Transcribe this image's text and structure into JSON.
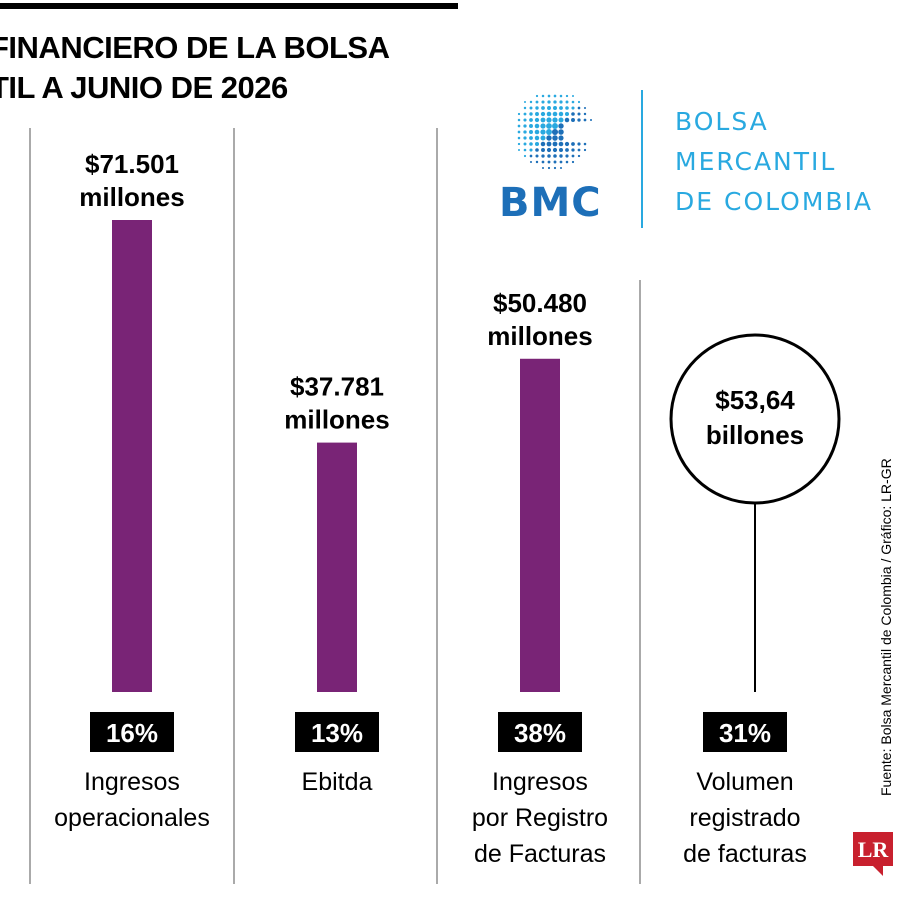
{
  "header": {
    "title_line1": "FINANCIERO DE LA BOLSA",
    "title_line2": "TIL A JUNIO DE 2026"
  },
  "logo": {
    "lettermark": "BMC",
    "name_line1": "BOLSA",
    "name_line2": "MERCANTIL",
    "name_line3": "DE COLOMBIA"
  },
  "source": "Fuente: Bolsa Mercantil de Colombia / Gráfico: LR-GR",
  "publisher_badge": "LR",
  "colors": {
    "bar": "#792476",
    "brand_dark_blue": "#1d6fb8",
    "brand_light_blue": "#29a9e0",
    "badge_red": "#c8202e"
  },
  "chart_data": {
    "type": "bar",
    "title": "",
    "categories": [
      "Ingresos operacionales",
      "Ebitda",
      "Ingresos por Registro de Facturas",
      "Volumen registrado de facturas"
    ],
    "category_label_lines": [
      [
        "Ingresos",
        "operacionales"
      ],
      [
        "Ebitda"
      ],
      [
        "Ingresos",
        "por Registro",
        "de Facturas"
      ],
      [
        "Volumen",
        "registrado",
        "de facturas"
      ]
    ],
    "values": [
      71501,
      37781,
      50480,
      null
    ],
    "unit": "millones",
    "value_labels": [
      [
        "$71.501",
        "millones"
      ],
      [
        "$37.781",
        "millones"
      ],
      [
        "$50.480",
        "millones"
      ],
      [
        "$53,64",
        "billones"
      ]
    ],
    "growth": [
      "16%",
      "13%",
      "38%",
      "31%"
    ],
    "fourth_item_style": "circle callout",
    "ylim": [
      0,
      71501
    ],
    "grid": false
  }
}
